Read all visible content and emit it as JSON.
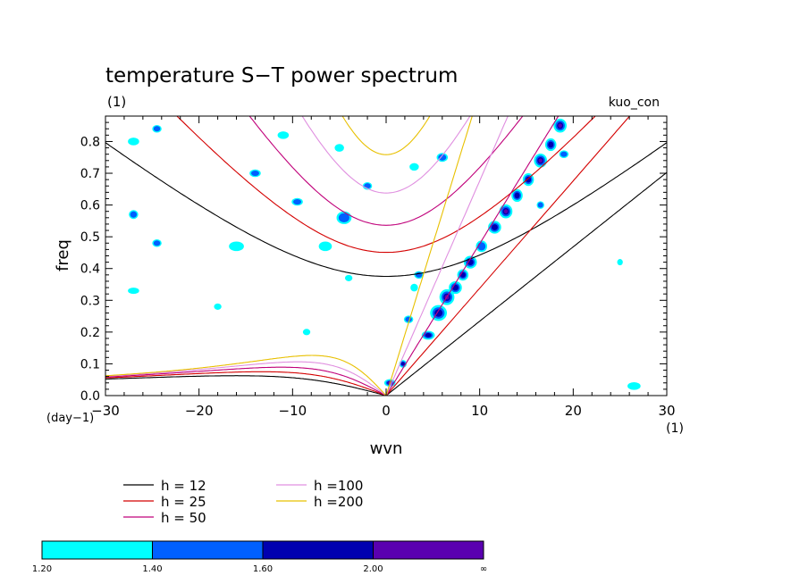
{
  "chart_data": {
    "type": "heatmap",
    "title": "temperature S−T power spectrum",
    "subtitle_left": "(1)",
    "subtitle_right": "kuo_con",
    "xlabel": "wvn",
    "ylabel": "freq",
    "x_unit_label": "(1)",
    "y_unit_label": "(day−1)",
    "xlim": [
      -30,
      30
    ],
    "ylim": [
      0,
      0.88
    ],
    "x_ticks": [
      {
        "v": -30,
        "t": "−30"
      },
      {
        "v": -20,
        "t": "−20"
      },
      {
        "v": -10,
        "t": "−10"
      },
      {
        "v": 0,
        "t": "0"
      },
      {
        "v": 10,
        "t": "10"
      },
      {
        "v": 20,
        "t": "20"
      },
      {
        "v": 30,
        "t": "30"
      }
    ],
    "y_ticks": [
      {
        "v": 0.0,
        "t": "0.0"
      },
      {
        "v": 0.1,
        "t": "0.1"
      },
      {
        "v": 0.2,
        "t": "0.2"
      },
      {
        "v": 0.3,
        "t": "0.3"
      },
      {
        "v": 0.4,
        "t": "0.4"
      },
      {
        "v": 0.5,
        "t": "0.5"
      },
      {
        "v": 0.6,
        "t": "0.6"
      },
      {
        "v": 0.7,
        "t": "0.7"
      },
      {
        "v": 0.8,
        "t": "0.8"
      }
    ],
    "dispersion_curves": [
      {
        "name": "h = 12",
        "h": 12,
        "color": "#000000"
      },
      {
        "name": "h = 25",
        "h": 25,
        "color": "#d40000"
      },
      {
        "name": "h = 50",
        "h": 50,
        "color": "#c0007a"
      },
      {
        "name": "h =100",
        "h": 100,
        "color": "#e090e0"
      },
      {
        "name": "h =200",
        "h": 200,
        "color": "#e8c000"
      }
    ],
    "colorbar": {
      "colors": [
        "#00ffff",
        "#0060ff",
        "#0000b0",
        "#5a00b0"
      ],
      "labels": [
        "1.20",
        "1.40",
        "1.60",
        "2.00",
        "∞"
      ]
    },
    "blobs": [
      {
        "x": 0.4,
        "y": 0.04,
        "rx": 0.6,
        "ry": 0.012,
        "lvl": 4
      },
      {
        "x": 1.8,
        "y": 0.1,
        "rx": 0.4,
        "ry": 0.012,
        "lvl": 3
      },
      {
        "x": 2.4,
        "y": 0.24,
        "rx": 0.5,
        "ry": 0.012,
        "lvl": 2
      },
      {
        "x": 4.5,
        "y": 0.19,
        "rx": 0.7,
        "ry": 0.014,
        "lvl": 3
      },
      {
        "x": 5.6,
        "y": 0.26,
        "rx": 0.9,
        "ry": 0.025,
        "lvl": 3
      },
      {
        "x": 6.5,
        "y": 0.31,
        "rx": 0.8,
        "ry": 0.025,
        "lvl": 4
      },
      {
        "x": 7.4,
        "y": 0.34,
        "rx": 0.7,
        "ry": 0.02,
        "lvl": 3
      },
      {
        "x": 8.2,
        "y": 0.38,
        "rx": 0.6,
        "ry": 0.018,
        "lvl": 3
      },
      {
        "x": 9.0,
        "y": 0.42,
        "rx": 0.7,
        "ry": 0.02,
        "lvl": 3
      },
      {
        "x": 10.2,
        "y": 0.47,
        "rx": 0.6,
        "ry": 0.018,
        "lvl": 2
      },
      {
        "x": 11.6,
        "y": 0.53,
        "rx": 0.7,
        "ry": 0.02,
        "lvl": 3
      },
      {
        "x": 12.8,
        "y": 0.58,
        "rx": 0.7,
        "ry": 0.022,
        "lvl": 4
      },
      {
        "x": 14.0,
        "y": 0.63,
        "rx": 0.6,
        "ry": 0.02,
        "lvl": 3
      },
      {
        "x": 15.2,
        "y": 0.68,
        "rx": 0.6,
        "ry": 0.02,
        "lvl": 3
      },
      {
        "x": 16.5,
        "y": 0.74,
        "rx": 0.7,
        "ry": 0.022,
        "lvl": 4
      },
      {
        "x": 17.6,
        "y": 0.79,
        "rx": 0.6,
        "ry": 0.02,
        "lvl": 3
      },
      {
        "x": 18.6,
        "y": 0.85,
        "rx": 0.7,
        "ry": 0.022,
        "lvl": 4
      },
      {
        "x": 16.5,
        "y": 0.6,
        "rx": 0.4,
        "ry": 0.012,
        "lvl": 2
      },
      {
        "x": 3.5,
        "y": 0.38,
        "rx": 0.5,
        "ry": 0.012,
        "lvl": 2
      },
      {
        "x": 3.0,
        "y": 0.34,
        "rx": 0.4,
        "ry": 0.012,
        "lvl": 1
      },
      {
        "x": -4.5,
        "y": 0.56,
        "rx": 0.8,
        "ry": 0.02,
        "lvl": 2
      },
      {
        "x": -6.5,
        "y": 0.47,
        "rx": 0.7,
        "ry": 0.015,
        "lvl": 1
      },
      {
        "x": -9.5,
        "y": 0.61,
        "rx": 0.6,
        "ry": 0.012,
        "lvl": 2
      },
      {
        "x": -16.0,
        "y": 0.47,
        "rx": 0.8,
        "ry": 0.015,
        "lvl": 1
      },
      {
        "x": -24.5,
        "y": 0.48,
        "rx": 0.5,
        "ry": 0.012,
        "lvl": 2
      },
      {
        "x": -27.0,
        "y": 0.57,
        "rx": 0.5,
        "ry": 0.014,
        "lvl": 2
      },
      {
        "x": -27.0,
        "y": 0.8,
        "rx": 0.6,
        "ry": 0.012,
        "lvl": 1
      },
      {
        "x": -24.5,
        "y": 0.84,
        "rx": 0.5,
        "ry": 0.012,
        "lvl": 2
      },
      {
        "x": -27.0,
        "y": 0.33,
        "rx": 0.6,
        "ry": 0.01,
        "lvl": 1
      },
      {
        "x": -14.0,
        "y": 0.7,
        "rx": 0.6,
        "ry": 0.012,
        "lvl": 2
      },
      {
        "x": -5.0,
        "y": 0.78,
        "rx": 0.5,
        "ry": 0.012,
        "lvl": 1
      },
      {
        "x": 3.0,
        "y": 0.72,
        "rx": 0.5,
        "ry": 0.012,
        "lvl": 1
      },
      {
        "x": 6.0,
        "y": 0.75,
        "rx": 0.6,
        "ry": 0.014,
        "lvl": 2
      },
      {
        "x": -11.0,
        "y": 0.82,
        "rx": 0.6,
        "ry": 0.012,
        "lvl": 1
      },
      {
        "x": -2.0,
        "y": 0.66,
        "rx": 0.5,
        "ry": 0.012,
        "lvl": 2
      },
      {
        "x": 19.0,
        "y": 0.76,
        "rx": 0.5,
        "ry": 0.012,
        "lvl": 2
      },
      {
        "x": 25.0,
        "y": 0.42,
        "rx": 0.3,
        "ry": 0.01,
        "lvl": 1
      },
      {
        "x": 26.5,
        "y": 0.03,
        "rx": 0.7,
        "ry": 0.012,
        "lvl": 1
      },
      {
        "x": -18.0,
        "y": 0.28,
        "rx": 0.4,
        "ry": 0.01,
        "lvl": 1
      },
      {
        "x": -8.5,
        "y": 0.2,
        "rx": 0.4,
        "ry": 0.01,
        "lvl": 1
      },
      {
        "x": -4.0,
        "y": 0.37,
        "rx": 0.4,
        "ry": 0.01,
        "lvl": 1
      }
    ]
  }
}
